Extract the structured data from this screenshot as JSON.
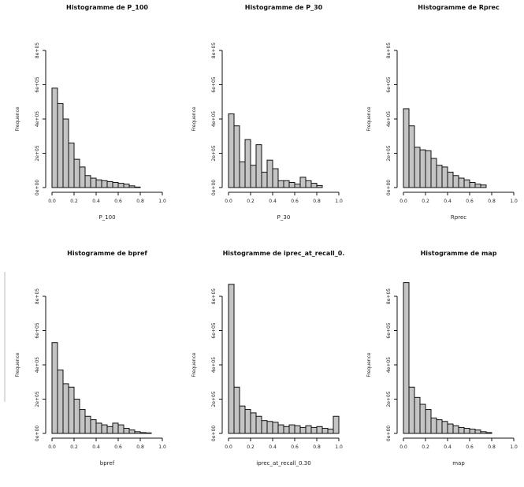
{
  "chart_data": [
    {
      "type": "bar",
      "title": "Histogramme de P_100",
      "xlabel": "P_100",
      "ylabel": "Frequence",
      "x_ticks": [
        "0.0",
        "0.2",
        "0.4",
        "0.6",
        "0.8",
        "1.0"
      ],
      "y_ticks": [
        "0e+00",
        "2e+05",
        "4e+05",
        "6e+05",
        "8e+05"
      ],
      "xlim": [
        0,
        1
      ],
      "ylim": [
        0,
        800000
      ],
      "bin_width": 0.05,
      "values": [
        580000,
        490000,
        400000,
        260000,
        165000,
        120000,
        70000,
        55000,
        45000,
        40000,
        35000,
        30000,
        25000,
        20000,
        10000,
        3000
      ]
    },
    {
      "type": "bar",
      "title": "Histogramme de P_30",
      "xlabel": "P_30",
      "ylabel": "Frequence",
      "x_ticks": [
        "0.0",
        "0.2",
        "0.4",
        "0.6",
        "0.8",
        "1.0"
      ],
      "y_ticks": [
        "0e+00",
        "2e+05",
        "4e+05",
        "6e+05",
        "8e+05"
      ],
      "xlim": [
        0,
        1
      ],
      "ylim": [
        0,
        800000
      ],
      "bin_width": 0.05,
      "values": [
        430000,
        360000,
        150000,
        280000,
        130000,
        250000,
        90000,
        160000,
        110000,
        40000,
        40000,
        30000,
        20000,
        60000,
        40000,
        25000,
        12000
      ]
    },
    {
      "type": "bar",
      "title": "Histogramme de Rprec",
      "xlabel": "Rprec",
      "ylabel": "Frequence",
      "x_ticks": [
        "0.0",
        "0.2",
        "0.4",
        "0.6",
        "0.8",
        "1.0"
      ],
      "y_ticks": [
        "0e+00",
        "2e+05",
        "4e+05",
        "6e+05",
        "8e+05"
      ],
      "xlim": [
        0,
        1
      ],
      "ylim": [
        0,
        800000
      ],
      "bin_width": 0.05,
      "values": [
        460000,
        360000,
        235000,
        220000,
        215000,
        170000,
        130000,
        120000,
        90000,
        70000,
        55000,
        45000,
        30000,
        20000,
        15000
      ]
    },
    {
      "type": "bar",
      "title": "Histogramme de bpref",
      "xlabel": "bpref",
      "ylabel": "Frequence",
      "x_ticks": [
        "0.0",
        "0.2",
        "0.4",
        "0.6",
        "0.8",
        "1.0"
      ],
      "y_ticks": [
        "0e+00",
        "2e+05",
        "4e+05",
        "6e+05",
        "8e+05"
      ],
      "xlim": [
        0,
        1
      ],
      "ylim": [
        0,
        800000
      ],
      "bin_width": 0.05,
      "values": [
        530000,
        370000,
        290000,
        270000,
        200000,
        140000,
        100000,
        80000,
        60000,
        50000,
        40000,
        60000,
        50000,
        30000,
        20000,
        10000,
        5000,
        3000
      ]
    },
    {
      "type": "bar",
      "title": "Histogramme de iprec_at_recall_0.",
      "xlabel": "iprec_at_recall_0.30",
      "ylabel": "Frequence",
      "x_ticks": [
        "0.0",
        "0.2",
        "0.4",
        "0.6",
        "0.8",
        "1.0"
      ],
      "y_ticks": [
        "0e+00",
        "2e+05",
        "4e+05",
        "6e+05",
        "8e+05"
      ],
      "xlim": [
        0,
        1
      ],
      "ylim": [
        0,
        800000
      ],
      "bin_width": 0.05,
      "values": [
        870000,
        270000,
        160000,
        140000,
        120000,
        100000,
        75000,
        70000,
        65000,
        50000,
        40000,
        50000,
        45000,
        35000,
        45000,
        35000,
        40000,
        30000,
        25000,
        100000
      ]
    },
    {
      "type": "bar",
      "title": "Histogramme de map",
      "xlabel": "map",
      "ylabel": "Frequence",
      "x_ticks": [
        "0.0",
        "0.2",
        "0.4",
        "0.6",
        "0.8",
        "1.0"
      ],
      "y_ticks": [
        "0e+00",
        "2e+05",
        "4e+05",
        "6e+05",
        "8e+05"
      ],
      "xlim": [
        0,
        1
      ],
      "ylim": [
        0,
        800000
      ],
      "bin_width": 0.05,
      "values": [
        880000,
        270000,
        210000,
        170000,
        140000,
        90000,
        80000,
        70000,
        55000,
        45000,
        35000,
        30000,
        25000,
        20000,
        10000,
        5000
      ]
    }
  ]
}
